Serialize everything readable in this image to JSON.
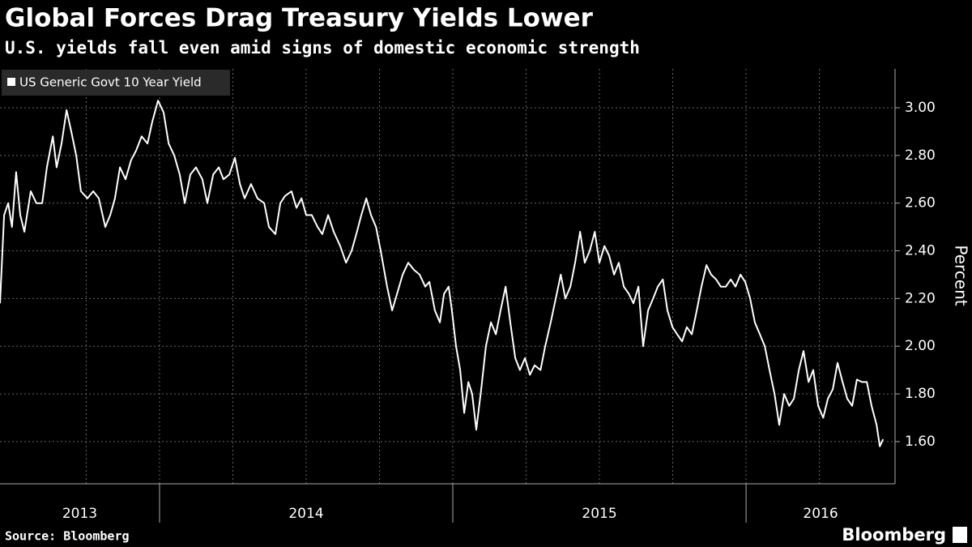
{
  "chart_data": {
    "type": "line",
    "title": "Global Forces Drag Treasury Yields Lower",
    "subtitle": "U.S. yields fall even amid signs of domestic economic strength",
    "ylabel": "Percent",
    "source": "Source: Bloomberg",
    "brand": "Bloomberg",
    "legend": "top-left",
    "grid": true,
    "x": [
      2013.456,
      2013.47,
      2013.484,
      2013.497,
      2013.511,
      2013.525,
      2013.539,
      2013.561,
      2013.58,
      2013.6,
      2013.616,
      2013.636,
      2013.649,
      2013.666,
      2013.683,
      2013.699,
      2013.716,
      2013.732,
      2013.754,
      2013.774,
      2013.793,
      2013.815,
      2013.832,
      2013.848,
      2013.865,
      2013.884,
      2013.903,
      2013.92,
      2013.939,
      2013.959,
      2013.975,
      2013.995,
      2014.014,
      2014.031,
      2014.05,
      2014.069,
      2014.086,
      2014.105,
      2014.124,
      2014.146,
      2014.163,
      2014.183,
      2014.202,
      2014.218,
      2014.238,
      2014.257,
      2014.274,
      2014.29,
      2014.312,
      2014.334,
      2014.357,
      2014.373,
      2014.395,
      2014.412,
      2014.428,
      2014.45,
      2014.467,
      2014.484,
      2014.5,
      2014.519,
      2014.539,
      2014.555,
      2014.575,
      2014.594,
      2014.616,
      2014.636,
      2014.655,
      2014.671,
      2014.688,
      2014.705,
      2014.721,
      2014.738,
      2014.754,
      2014.776,
      2014.793,
      2014.81,
      2014.829,
      2014.848,
      2014.868,
      2014.887,
      2014.906,
      2014.92,
      2014.939,
      2014.956,
      2014.97,
      2014.986,
      2014.997,
      2015.011,
      2015.025,
      2015.039,
      2015.053,
      2015.066,
      2015.08,
      2015.097,
      2015.113,
      2015.13,
      2015.147,
      2015.163,
      2015.18,
      2015.196,
      2015.213,
      2015.229,
      2015.246,
      2015.263,
      2015.279,
      2015.299,
      2015.315,
      2015.334,
      2015.351,
      2015.368,
      2015.384,
      2015.401,
      2015.417,
      2015.434,
      2015.45,
      2015.467,
      2015.484,
      2015.5,
      2015.517,
      2015.533,
      2015.55,
      2015.566,
      2015.583,
      2015.6,
      2015.616,
      2015.633,
      2015.649,
      2015.666,
      2015.683,
      2015.699,
      2015.716,
      2015.732,
      2015.749,
      2015.765,
      2015.782,
      2015.798,
      2015.815,
      2015.832,
      2015.848,
      2015.865,
      2015.881,
      2015.898,
      2015.914,
      2015.931,
      2015.948,
      2015.964,
      2015.981,
      2015.997,
      2016.014,
      2016.03,
      2016.047,
      2016.064,
      2016.08,
      2016.097,
      2016.113,
      2016.13,
      2016.147,
      2016.163,
      2016.18,
      2016.196,
      2016.213,
      2016.229,
      2016.246,
      2016.263,
      2016.279,
      2016.296,
      2016.312,
      2016.329,
      2016.345,
      2016.362,
      2016.378,
      2016.395,
      2016.412,
      2016.428,
      2016.445,
      2016.456,
      2016.467
    ],
    "series": [
      {
        "name": "US Generic Govt 10 Year Yield",
        "color": "#ffffff",
        "values": [
          2.18,
          2.55,
          2.6,
          2.5,
          2.73,
          2.55,
          2.48,
          2.65,
          2.6,
          2.6,
          2.75,
          2.88,
          2.75,
          2.85,
          2.99,
          2.9,
          2.8,
          2.65,
          2.62,
          2.65,
          2.62,
          2.5,
          2.55,
          2.62,
          2.75,
          2.7,
          2.78,
          2.82,
          2.88,
          2.85,
          2.94,
          3.03,
          2.98,
          2.85,
          2.8,
          2.72,
          2.6,
          2.72,
          2.75,
          2.7,
          2.6,
          2.72,
          2.75,
          2.7,
          2.72,
          2.79,
          2.68,
          2.62,
          2.68,
          2.62,
          2.6,
          2.5,
          2.47,
          2.6,
          2.63,
          2.65,
          2.58,
          2.62,
          2.55,
          2.55,
          2.5,
          2.47,
          2.55,
          2.48,
          2.42,
          2.35,
          2.4,
          2.47,
          2.55,
          2.62,
          2.55,
          2.5,
          2.4,
          2.25,
          2.15,
          2.22,
          2.3,
          2.35,
          2.32,
          2.3,
          2.25,
          2.27,
          2.15,
          2.1,
          2.22,
          2.25,
          2.15,
          2.0,
          1.9,
          1.72,
          1.85,
          1.8,
          1.65,
          1.82,
          2.0,
          2.1,
          2.05,
          2.15,
          2.25,
          2.1,
          1.95,
          1.9,
          1.95,
          1.88,
          1.92,
          1.9,
          2.0,
          2.1,
          2.2,
          2.3,
          2.2,
          2.25,
          2.35,
          2.48,
          2.35,
          2.4,
          2.48,
          2.35,
          2.42,
          2.38,
          2.3,
          2.35,
          2.25,
          2.22,
          2.18,
          2.25,
          2.0,
          2.15,
          2.2,
          2.25,
          2.28,
          2.15,
          2.08,
          2.05,
          2.02,
          2.08,
          2.05,
          2.15,
          2.25,
          2.34,
          2.3,
          2.28,
          2.25,
          2.25,
          2.28,
          2.25,
          2.3,
          2.27,
          2.2,
          2.1,
          2.05,
          2.0,
          1.9,
          1.8,
          1.67,
          1.8,
          1.75,
          1.78,
          1.9,
          1.98,
          1.85,
          1.9,
          1.75,
          1.7,
          1.78,
          1.82,
          1.93,
          1.85,
          1.78,
          1.75,
          1.86,
          1.85,
          1.85,
          1.75,
          1.67,
          1.58,
          1.61
        ]
      }
    ],
    "xlim": [
      2013.456,
      2016.508
    ],
    "xticks": [
      2013.75,
      2014,
      2014.25,
      2014.5,
      2014.75,
      2015,
      2015.25,
      2015.5,
      2015.75,
      2016,
      2016.25
    ],
    "year_labels": [
      2013,
      2014,
      2015,
      2016
    ],
    "ylim": [
      1.423,
      3.163
    ],
    "yticks": [
      {
        "value": 1.6,
        "label": "1.60"
      },
      {
        "value": 1.8,
        "label": "1.80"
      },
      {
        "value": 2,
        "label": "2.00"
      },
      {
        "value": 2.2,
        "label": "2.20"
      },
      {
        "value": 2.4,
        "label": "2.40"
      },
      {
        "value": 2.6,
        "label": "2.60"
      },
      {
        "value": 2.8,
        "label": "2.80"
      },
      {
        "value": 3,
        "label": "3.00"
      }
    ]
  }
}
